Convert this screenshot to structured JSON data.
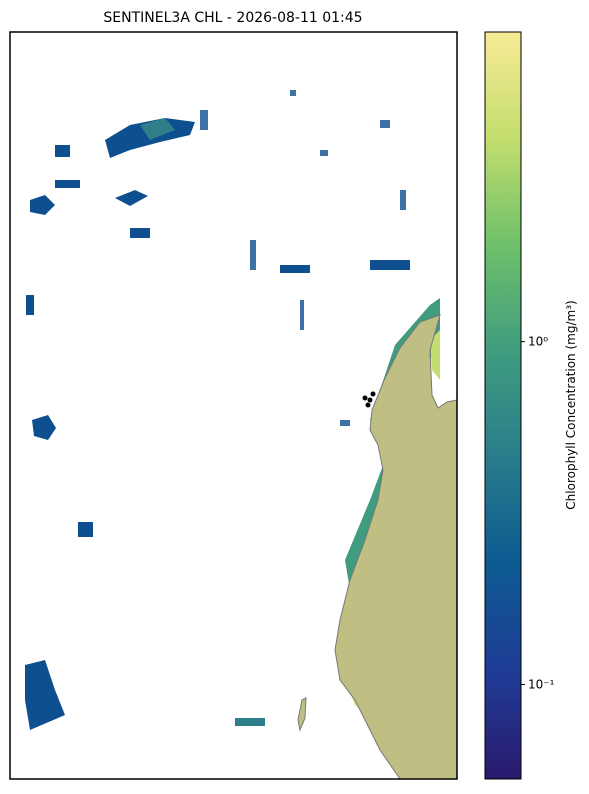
{
  "chart_data": {
    "type": "map",
    "title": "SENTINEL3A CHL - 2026-08-11 01:45",
    "colorbar": {
      "label": "Chlorophyll Concentration (mg/m³)",
      "scale": "log",
      "lim": [
        0.053,
        8
      ],
      "ticks": [
        {
          "value": 0.1,
          "label": "10⁻¹"
        },
        {
          "value": 1,
          "label": "10⁰"
        }
      ],
      "colormap": [
        "#2a1a6e",
        "#1f3c96",
        "#0d5a92",
        "#2a7c8c",
        "#3f9c7e",
        "#6ec06a",
        "#c3de6e",
        "#f8ea95"
      ]
    }
  }
}
